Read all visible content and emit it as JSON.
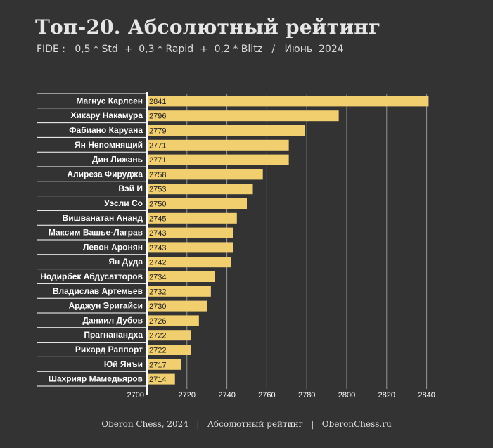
{
  "header": {
    "title": "Топ-20. Абсолютный рейтинг",
    "subtitle": "FIDE :   0,5 * Std  +  0,3 * Rapid  +  0,2 * Blitz   /   Июнь  2024"
  },
  "footer": {
    "text": "Oberon Chess, 2024   |   Абсолютный рейтинг   |   OberonChess.ru"
  },
  "colors": {
    "background": "#333333",
    "bar": "#f1ce6e",
    "text": "#ffffff",
    "grid": "#e8e8e8"
  },
  "chart_data": {
    "type": "bar",
    "orientation": "horizontal",
    "categories": [
      "Магнус Карлсен",
      "Хикару Накамура",
      "Фабиано Каруана",
      "Ян Непомнящий",
      "Дин Лижэнь",
      "Алиреза Фируджа",
      "Вэй И",
      "Уэсли Со",
      "Вишванатан Ананд",
      "Максим Вашье-Лаграв",
      "Левон Аронян",
      "Ян Дуда",
      "Нодирбек Абдусатторов",
      "Владислав Артемьев",
      "Арджун Эригайси",
      "Даниил Дубов",
      "Прагнанандха",
      "Рихард Раппорт",
      "Юй Янъи",
      "Шахрияр Мамедьяров"
    ],
    "values": [
      2841,
      2796,
      2779,
      2771,
      2771,
      2758,
      2753,
      2750,
      2745,
      2743,
      2743,
      2742,
      2734,
      2732,
      2730,
      2726,
      2722,
      2722,
      2717,
      2714
    ],
    "xlim": [
      2700,
      2850
    ],
    "xticks": [
      2700,
      2720,
      2740,
      2760,
      2780,
      2800,
      2820,
      2840
    ],
    "grid": "vertical",
    "data_labels": true
  }
}
